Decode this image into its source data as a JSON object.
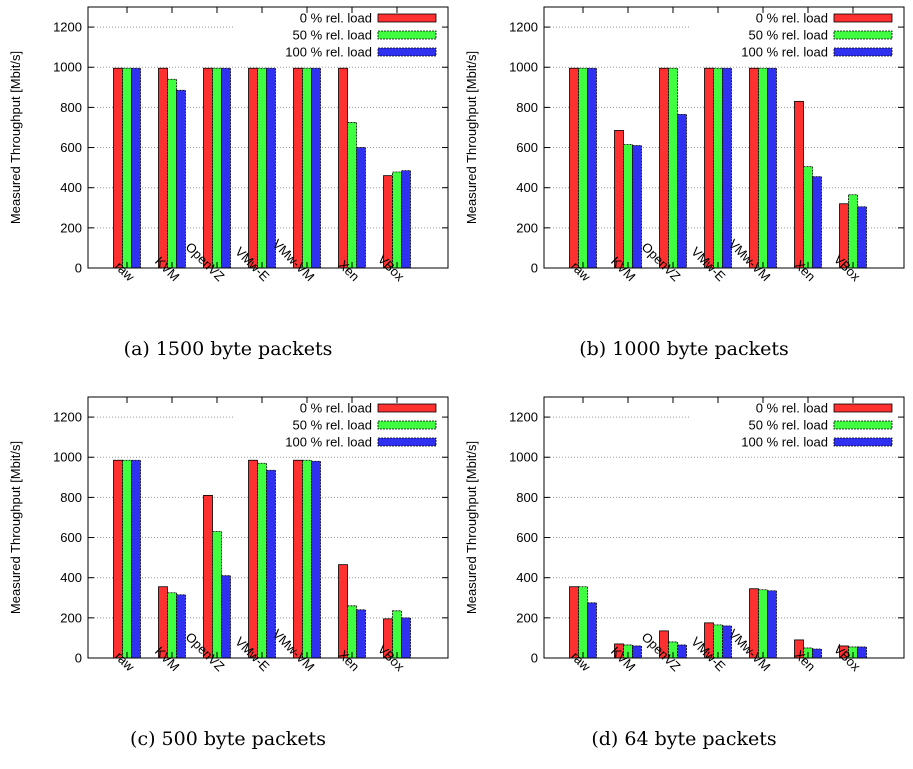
{
  "colors": {
    "load0": "#ff3030",
    "load50": "#40ff40",
    "load100": "#3030f0"
  },
  "chart_data": [
    {
      "type": "bar",
      "caption": "(a) 1500 byte packets",
      "ylabel": "Measured Throughput [Mbit/s]",
      "ylim": [
        0,
        1300
      ],
      "yticks": [
        0,
        200,
        400,
        600,
        800,
        1000,
        1200
      ],
      "grid": true,
      "legend": "top-right",
      "categories": [
        "raw",
        "KVM",
        "OpenVZ",
        "VMw-E",
        "VMw-VM",
        "Xen",
        "VBox"
      ],
      "series": [
        {
          "name": "0 % rel. load",
          "values": [
            995,
            995,
            995,
            995,
            995,
            995,
            460
          ]
        },
        {
          "name": "50 % rel. load",
          "values": [
            995,
            940,
            995,
            995,
            995,
            725,
            478
          ]
        },
        {
          "name": "100 % rel. load",
          "values": [
            995,
            885,
            995,
            995,
            995,
            600,
            485
          ]
        }
      ]
    },
    {
      "type": "bar",
      "caption": "(b) 1000 byte packets",
      "ylabel": "Measured Throughput [Mbit/s]",
      "ylim": [
        0,
        1300
      ],
      "yticks": [
        0,
        200,
        400,
        600,
        800,
        1000,
        1200
      ],
      "grid": true,
      "legend": "top-right",
      "categories": [
        "raw",
        "KVM",
        "OpenVZ",
        "VMw-E",
        "VMw-VM",
        "Xen",
        "VBox"
      ],
      "series": [
        {
          "name": "0 % rel. load",
          "values": [
            995,
            685,
            995,
            995,
            995,
            830,
            320
          ]
        },
        {
          "name": "50 % rel. load",
          "values": [
            995,
            615,
            995,
            995,
            995,
            505,
            365
          ]
        },
        {
          "name": "100 % rel. load",
          "values": [
            995,
            610,
            765,
            995,
            995,
            455,
            305
          ]
        }
      ]
    },
    {
      "type": "bar",
      "caption": "(c) 500 byte packets",
      "ylabel": "Measured Throughput [Mbit/s]",
      "ylim": [
        0,
        1300
      ],
      "yticks": [
        0,
        200,
        400,
        600,
        800,
        1000,
        1200
      ],
      "grid": true,
      "legend": "top-right",
      "categories": [
        "raw",
        "KVM",
        "OpenVZ",
        "VMw-E",
        "VMw-VM",
        "Xen",
        "VBox"
      ],
      "series": [
        {
          "name": "0 % rel. load",
          "values": [
            985,
            355,
            810,
            985,
            985,
            465,
            195
          ]
        },
        {
          "name": "50 % rel. load",
          "values": [
            985,
            325,
            630,
            970,
            985,
            260,
            235
          ]
        },
        {
          "name": "100 % rel. load",
          "values": [
            985,
            315,
            410,
            935,
            980,
            240,
            200
          ]
        }
      ]
    },
    {
      "type": "bar",
      "caption": "(d) 64 byte packets",
      "ylabel": "Measured Throughput [Mbit/s]",
      "ylim": [
        0,
        1300
      ],
      "yticks": [
        0,
        200,
        400,
        600,
        800,
        1000,
        1200
      ],
      "grid": true,
      "legend": "top-right",
      "categories": [
        "raw",
        "KVM",
        "OpenVZ",
        "VMw-E",
        "VMw-VM",
        "Xen",
        "VBox"
      ],
      "series": [
        {
          "name": "0 % rel. load",
          "values": [
            355,
            70,
            135,
            175,
            345,
            90,
            60
          ]
        },
        {
          "name": "50 % rel. load",
          "values": [
            355,
            65,
            80,
            165,
            340,
            50,
            55
          ]
        },
        {
          "name": "100 % rel. load",
          "values": [
            275,
            60,
            65,
            160,
            335,
            45,
            55
          ]
        }
      ]
    }
  ]
}
